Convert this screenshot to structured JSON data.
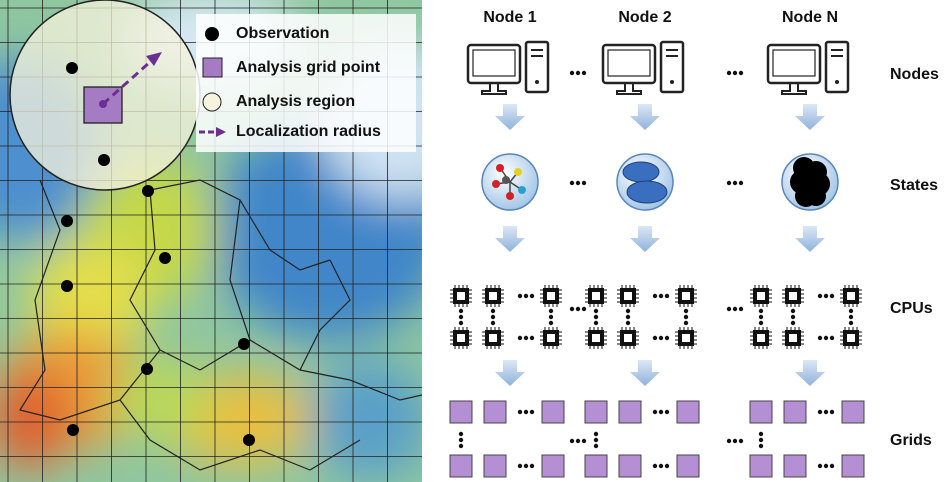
{
  "legend": [
    {
      "label": "Observation"
    },
    {
      "label": "Analysis grid point"
    },
    {
      "label": "Analysis region"
    },
    {
      "label": "Localization radius"
    }
  ],
  "columns": [
    {
      "label": "Node 1"
    },
    {
      "label": "Node 2"
    },
    {
      "label": "Node N"
    }
  ],
  "rows": [
    {
      "label": "Nodes"
    },
    {
      "label": "States"
    },
    {
      "label": "CPUs"
    },
    {
      "label": "Grids"
    }
  ]
}
